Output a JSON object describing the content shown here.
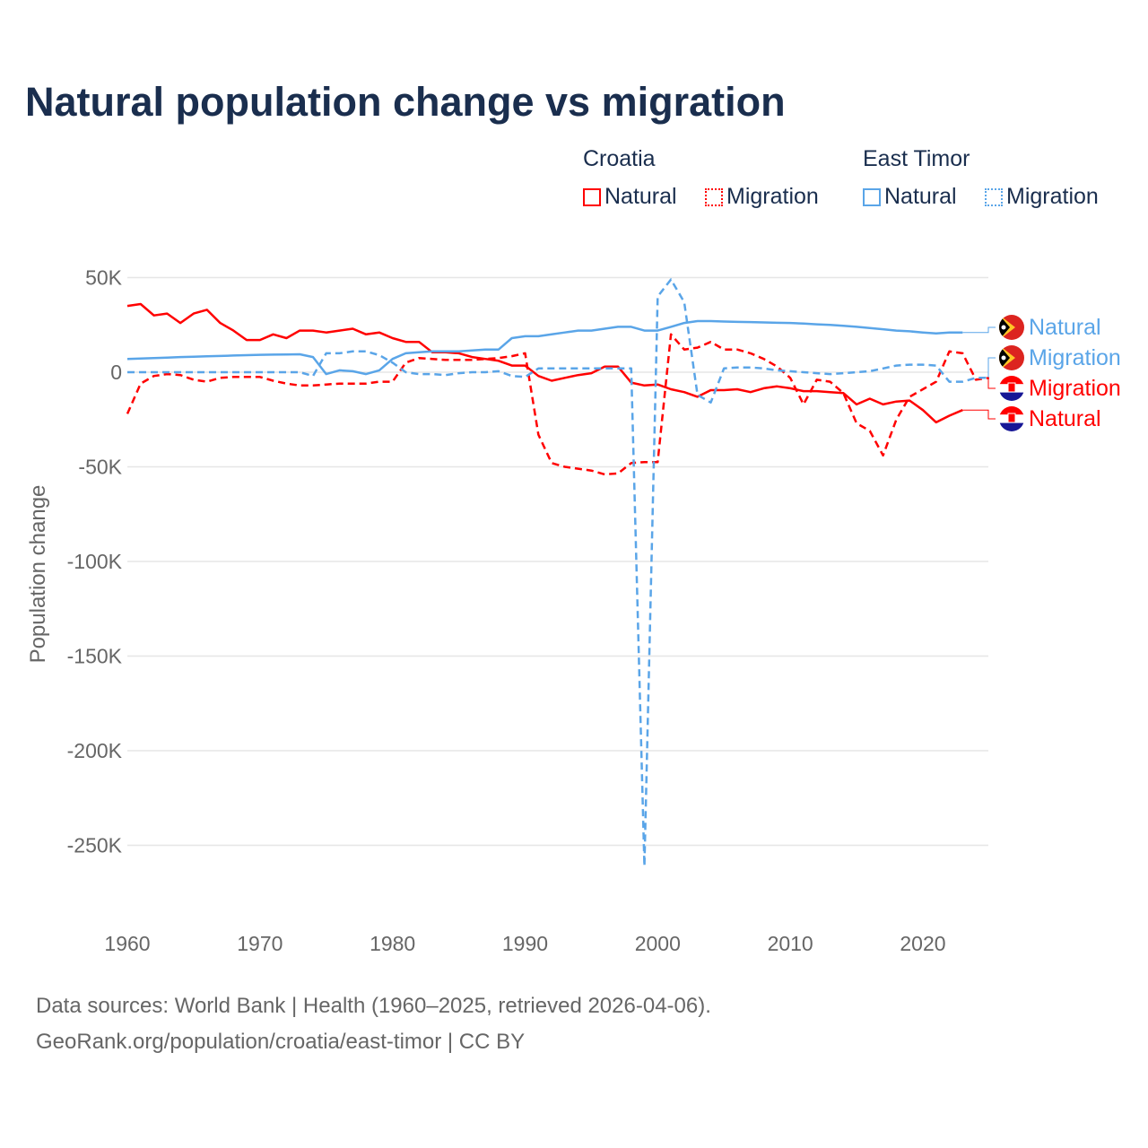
{
  "title": "Natural population change vs migration",
  "legend": {
    "groups": [
      {
        "name": "Croatia",
        "color": "#ff0000",
        "items": [
          "Natural",
          "Migration"
        ]
      },
      {
        "name": "East Timor",
        "color": "#5aa5e8",
        "items": [
          "Natural",
          "Migration"
        ]
      }
    ]
  },
  "footer": {
    "line1": "Data sources: World Bank | Health (1960–2025, retrieved 2026-04-06).",
    "line2": "GeoRank.org/population/croatia/east-timor | CC BY"
  },
  "chart_data": {
    "type": "line",
    "title": "Natural population change vs migration",
    "xlabel": "",
    "ylabel": "Population change",
    "xlim": [
      1960,
      2025
    ],
    "ylim": [
      -270000,
      55000
    ],
    "xticks": [
      1960,
      1970,
      1980,
      1990,
      2000,
      2010,
      2020
    ],
    "xtick_labels": [
      "1960",
      "1970",
      "1980",
      "1990",
      "2000",
      "2010",
      "2020"
    ],
    "yticks": [
      50000,
      0,
      -50000,
      -100000,
      -150000,
      -200000,
      -250000
    ],
    "ytick_labels": [
      "50K",
      "0",
      "-50K",
      "-100K",
      "-150K",
      "-200K",
      "-250K"
    ],
    "grid": true,
    "series": [
      {
        "name": "Croatia Natural",
        "country": "Croatia",
        "kind": "Natural",
        "color": "#ff0000",
        "dash": false,
        "start": 1960,
        "values_k": [
          35,
          36,
          30,
          31,
          26,
          31,
          33,
          26,
          22,
          17,
          17,
          20,
          18,
          22,
          22,
          21,
          22,
          23,
          20,
          21,
          18,
          16,
          16,
          10.5,
          10.5,
          10,
          8,
          7,
          6,
          3.5,
          3.5,
          -2,
          -4.5,
          -3,
          -1.5,
          -0.5,
          3,
          3,
          -5.5,
          -7,
          -6.5,
          -9,
          -10.5,
          -13,
          -9.5,
          -9.5,
          -9,
          -10.5,
          -8.5,
          -7.5,
          -8.5,
          -10,
          -10,
          -10.5,
          -11,
          -17,
          -14,
          -17,
          -15.5,
          -15,
          -20,
          -26.5,
          -23,
          -20
        ]
      },
      {
        "name": "Croatia Migration",
        "country": "Croatia",
        "kind": "Migration",
        "color": "#ff0000",
        "dash": true,
        "start": 1960,
        "values_k": [
          -22,
          -6,
          -2,
          -1,
          -1.5,
          -4,
          -5,
          -3,
          -2.5,
          -2.5,
          -2.5,
          -4.5,
          -6,
          -7,
          -7,
          -6.5,
          -6,
          -6,
          -6,
          -5,
          -5,
          5,
          7.5,
          7,
          6.5,
          6.5,
          6.5,
          7,
          7.5,
          8.5,
          10,
          -33,
          -48,
          -50,
          -51,
          -52,
          -54,
          -53.5,
          -48,
          -47.5,
          -47.5,
          20,
          12,
          13,
          16,
          12,
          12,
          10,
          7,
          3,
          -3,
          -17,
          -4,
          -5,
          -11,
          -27,
          -31,
          -44,
          -25,
          -13,
          -9,
          -5,
          11,
          10,
          -4,
          -3
        ]
      },
      {
        "name": "East Timor Natural",
        "country": "East Timor",
        "kind": "Natural",
        "color": "#5aa5e8",
        "dash": false,
        "start": 1960,
        "values_k": [
          7,
          7.2,
          7.5,
          7.7,
          8,
          8.2,
          8.4,
          8.6,
          8.8,
          9,
          9.2,
          9.3,
          9.4,
          9.5,
          8,
          -1,
          1,
          0.5,
          -1,
          1,
          7,
          10,
          10.5,
          11,
          11,
          11,
          11.5,
          12,
          12,
          18,
          19,
          19,
          20,
          21,
          22,
          22,
          23,
          24,
          24,
          22,
          22,
          24,
          26,
          27,
          27,
          26.8,
          26.6,
          26.5,
          26.3,
          26.1,
          26,
          25.7,
          25.3,
          25,
          24.5,
          24,
          23.3,
          22.7,
          22,
          21.6,
          21,
          20.5,
          21,
          21
        ]
      },
      {
        "name": "East Timor Migration",
        "country": "East Timor",
        "kind": "Migration",
        "color": "#5aa5e8",
        "dash": true,
        "start": 1960,
        "values_k": [
          0,
          0,
          0,
          0,
          0,
          0,
          0,
          0,
          0,
          0,
          0,
          0,
          0,
          0,
          -2,
          10,
          10,
          11,
          11,
          9,
          5,
          0,
          -1,
          -1,
          -1.5,
          -0.5,
          0,
          0,
          0.5,
          -2,
          -2.5,
          2,
          2,
          2,
          2,
          2,
          2,
          2,
          2,
          -261,
          40,
          49,
          37,
          -12,
          -16,
          2,
          2.5,
          2.5,
          2,
          1,
          0.5,
          0,
          -0.5,
          -1,
          -0.5,
          0,
          0.5,
          2,
          3.5,
          4,
          4,
          3.5,
          -5,
          -5,
          -3,
          -3
        ]
      }
    ],
    "end_labels": [
      {
        "text": "Natural",
        "country": "East Timor",
        "color": "#5aa5e8"
      },
      {
        "text": "Migration",
        "country": "East Timor",
        "color": "#5aa5e8"
      },
      {
        "text": "Migration",
        "country": "Croatia",
        "color": "#ff0000"
      },
      {
        "text": "Natural",
        "country": "Croatia",
        "color": "#ff0000"
      }
    ]
  }
}
